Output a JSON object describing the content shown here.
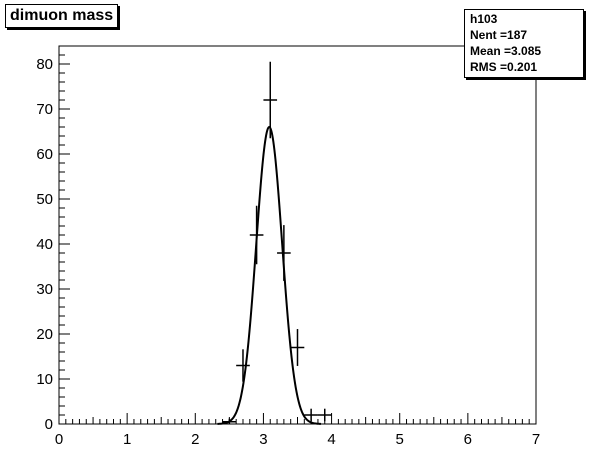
{
  "title": "dimuon mass",
  "stats": {
    "name": "h103",
    "rows": [
      {
        "label": "Nent = ",
        "value": "187"
      },
      {
        "label": "Mean  = ",
        "value": "3.085"
      },
      {
        "label": "RMS   = ",
        "value": "0.201"
      }
    ]
  },
  "chart_data": {
    "type": "scatter",
    "title": "dimuon mass",
    "xlabel": "",
    "ylabel": "",
    "xlim": [
      0,
      7
    ],
    "ylim": [
      0,
      84
    ],
    "x_ticks": [
      "0",
      "1",
      "2",
      "3",
      "4",
      "5",
      "6",
      "7"
    ],
    "y_ticks": [
      "0",
      "10",
      "20",
      "30",
      "40",
      "50",
      "60",
      "70",
      "80"
    ],
    "grid": false,
    "points": [
      {
        "x": 2.5,
        "y": 0.5,
        "xerr": 0.1,
        "yerr": 0.7
      },
      {
        "x": 2.7,
        "y": 13,
        "xerr": 0.1,
        "yerr": 3.6
      },
      {
        "x": 2.9,
        "y": 42,
        "xerr": 0.1,
        "yerr": 6.5
      },
      {
        "x": 3.1,
        "y": 72,
        "xerr": 0.1,
        "yerr": 8.5
      },
      {
        "x": 3.3,
        "y": 38,
        "xerr": 0.1,
        "yerr": 6.2
      },
      {
        "x": 3.5,
        "y": 17,
        "xerr": 0.1,
        "yerr": 4.1
      },
      {
        "x": 3.7,
        "y": 2,
        "xerr": 0.1,
        "yerr": 1.4
      },
      {
        "x": 3.9,
        "y": 2,
        "xerr": 0.1,
        "yerr": 1.4
      }
    ],
    "fit": {
      "type": "gaussian",
      "amplitude": 66,
      "mean": 3.085,
      "sigma": 0.19
    }
  }
}
